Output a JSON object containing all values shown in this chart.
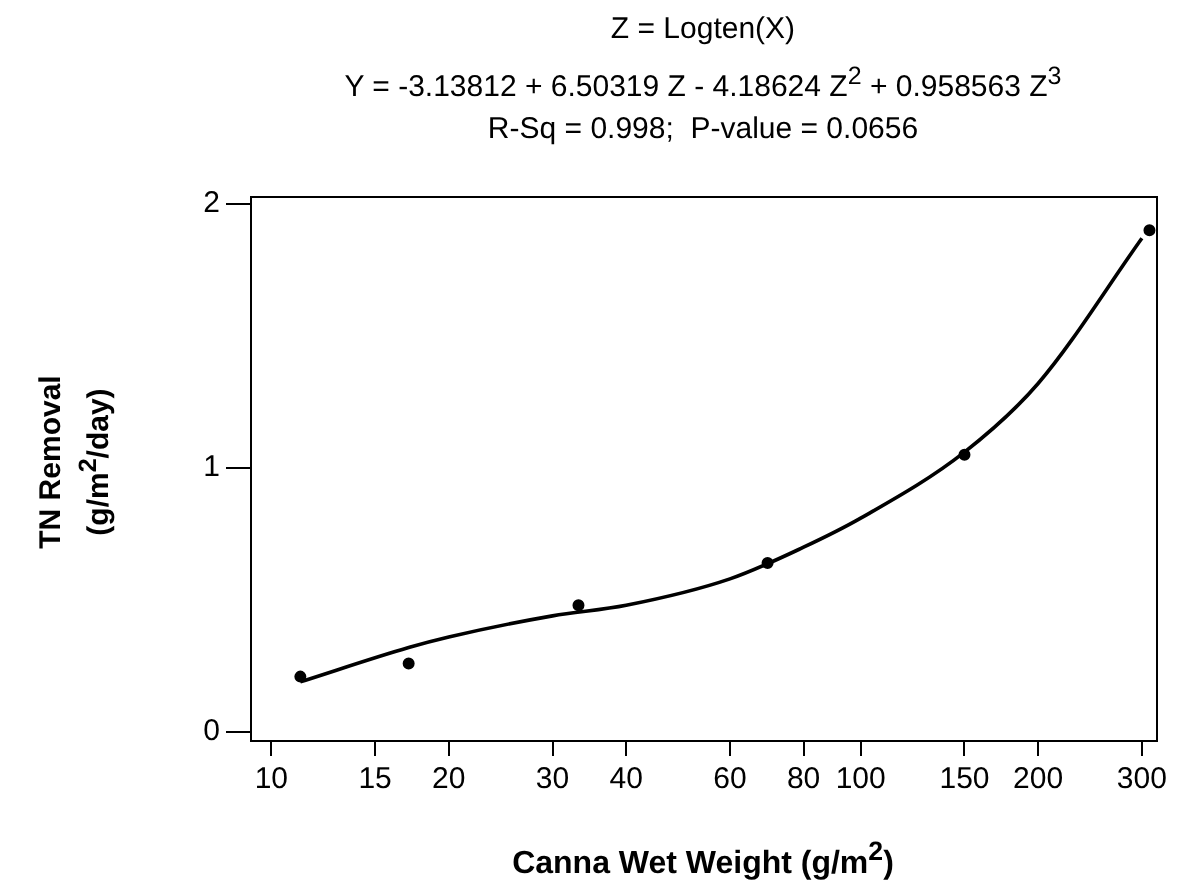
{
  "chart_data": {
    "type": "scatter",
    "title": "Z = Logten(X)",
    "subtitle": "Y = -3.13812 + 6.50319 Z - 4.18624 Z$^{2}$ + 0.958563 Z$^{3}$",
    "annotations": [
      "R-Sq = 0.998;  P-value = 0.0656"
    ],
    "xlabel": "Canna Wet Weight (g/m$^{2}$)",
    "ylabel": "TN Removal (g/m$^{2}$/day)",
    "log": "x",
    "xlim": [
      9.2,
      317
    ],
    "xticks": [
      10,
      15,
      20,
      30,
      40,
      60,
      80,
      100,
      150,
      200,
      300
    ],
    "ylim": [
      -0.03,
      2.03
    ],
    "yticks": [
      0,
      1,
      2
    ],
    "grid": false,
    "legend": false,
    "marker": "circle",
    "series": [
      {
        "color": "#000000",
        "x": [
          11.2,
          17.1,
          33.2,
          69.5,
          150,
          309
        ],
        "values": [
          0.21,
          0.26,
          0.48,
          0.64,
          1.05,
          1.9
        ]
      },
      {
        "type": "line",
        "color": "#000000",
        "marker": "none",
        "x": [
          11.2,
          17.1,
          20,
          30,
          40,
          60,
          80,
          100,
          150,
          200,
          300
        ],
        "values": [
          0.19,
          0.32,
          0.36,
          0.44,
          0.48,
          0.58,
          0.7,
          0.81,
          1.06,
          1.32,
          1.87
        ]
      }
    ]
  }
}
